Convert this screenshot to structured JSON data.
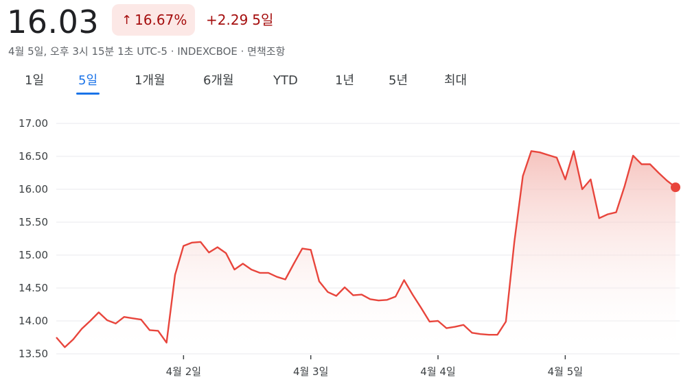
{
  "quote": {
    "price": "16.03",
    "pct_arrow": "↑",
    "pct_change": "16.67%",
    "abs_change": "+2.29",
    "change_period": "5일",
    "meta": "4월 5일, 오후 3시 15분 1초 UTC-5 · INDEXCBOE · 면책조항"
  },
  "tabs": [
    {
      "label": "1일",
      "active": false
    },
    {
      "label": "5일",
      "active": true
    },
    {
      "label": "1개월",
      "active": false
    },
    {
      "label": "6개월",
      "active": false
    },
    {
      "label": "YTD",
      "active": false
    },
    {
      "label": "1년",
      "active": false
    },
    {
      "label": "5년",
      "active": false
    },
    {
      "label": "최대",
      "active": false
    }
  ],
  "colors": {
    "line": "#e8453c",
    "fill_top": "#f4b9b3",
    "grid": "#e8eaed",
    "active_tab": "#1a73e8",
    "loss_text": "#a50e0e"
  },
  "chart_data": {
    "type": "area",
    "ylim": [
      13.5,
      17.0
    ],
    "y_ticks": [
      "17.00",
      "16.50",
      "16.00",
      "15.50",
      "15.00",
      "14.50",
      "14.00",
      "13.50"
    ],
    "x_ticks": [
      {
        "label": "4월 2일",
        "index": 15
      },
      {
        "label": "4월 3일",
        "index": 30
      },
      {
        "label": "4월 4일",
        "index": 45
      },
      {
        "label": "4월 5일",
        "index": 60
      }
    ],
    "values": [
      13.75,
      13.6,
      13.72,
      13.88,
      14.0,
      14.13,
      14.01,
      13.96,
      14.06,
      14.04,
      14.02,
      13.86,
      13.85,
      13.67,
      14.7,
      15.14,
      15.19,
      15.2,
      15.04,
      15.12,
      15.03,
      14.78,
      14.87,
      14.78,
      14.73,
      14.73,
      14.67,
      14.63,
      14.87,
      15.1,
      15.08,
      14.6,
      14.44,
      14.38,
      14.51,
      14.39,
      14.4,
      14.33,
      14.31,
      14.32,
      14.37,
      14.62,
      14.4,
      14.2,
      13.99,
      14.0,
      13.89,
      13.91,
      13.94,
      13.82,
      13.8,
      13.79,
      13.79,
      13.99,
      15.2,
      16.2,
      16.58,
      16.56,
      16.52,
      16.48,
      16.15,
      16.58,
      16.0,
      16.15,
      15.56,
      15.62,
      15.65,
      16.05,
      16.51,
      16.38,
      16.38,
      16.25,
      16.13,
      16.03
    ]
  }
}
